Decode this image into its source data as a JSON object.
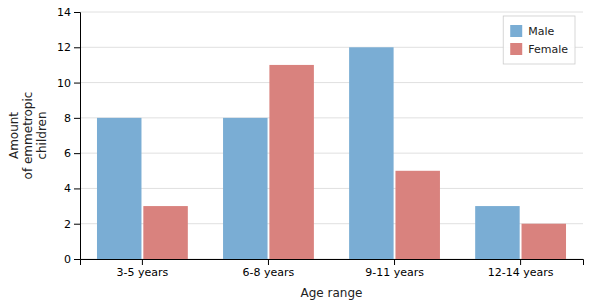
{
  "chart_data": {
    "type": "bar",
    "categories": [
      "3-5 years",
      "6-8 years",
      "9-11 years",
      "12-14 years"
    ],
    "series": [
      {
        "name": "Male",
        "color": "#7aadd4",
        "values": [
          8,
          8,
          12,
          3
        ]
      },
      {
        "name": "Female",
        "color": "#d9827e",
        "values": [
          3,
          11,
          5,
          2
        ]
      }
    ],
    "xlabel": "Age range",
    "ylabel": "Amount\nof emmetropic\nchildren",
    "ylim": [
      0,
      14
    ],
    "yticks": [
      0,
      2,
      4,
      6,
      8,
      10,
      12,
      14
    ],
    "grid": true,
    "legend": "upper-right"
  }
}
